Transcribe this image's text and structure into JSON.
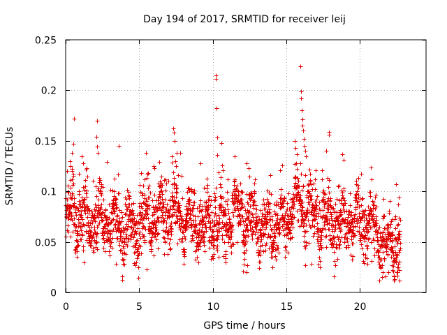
{
  "chart_data": {
    "type": "scatter",
    "title": "Day 194 of 2017, SRMTID for receiver leij",
    "xlabel": "GPS time / hours",
    "ylabel": "SRMTID / TECUs",
    "xlim": [
      0,
      24.5
    ],
    "ylim": [
      0,
      0.25
    ],
    "x_ticks": [
      0,
      5,
      10,
      15,
      20
    ],
    "x_tick_labels": [
      "0",
      "5",
      "10",
      "15",
      "20"
    ],
    "y_ticks": [
      0,
      0.05,
      0.1,
      0.15,
      0.2,
      0.25
    ],
    "y_tick_labels": [
      "0",
      "0.05",
      "0.1",
      "0.15",
      "0.2",
      "0.25"
    ],
    "grid": true,
    "marker": "+",
    "color": "#e00000",
    "generator": {
      "x_start": 0.0,
      "x_end": 22.75,
      "n_points": 2400,
      "seed": 194,
      "noise_sd": 0.014,
      "baseline": [
        [
          0.0,
          0.072
        ],
        [
          0.5,
          0.085
        ],
        [
          1.0,
          0.075
        ],
        [
          1.5,
          0.068
        ],
        [
          2.0,
          0.072
        ],
        [
          2.5,
          0.068
        ],
        [
          3.0,
          0.064
        ],
        [
          3.5,
          0.068
        ],
        [
          4.0,
          0.065
        ],
        [
          4.5,
          0.062
        ],
        [
          5.0,
          0.065
        ],
        [
          5.5,
          0.07
        ],
        [
          6.0,
          0.075
        ],
        [
          6.5,
          0.077
        ],
        [
          7.0,
          0.08
        ],
        [
          7.5,
          0.08
        ],
        [
          8.0,
          0.072
        ],
        [
          8.5,
          0.068
        ],
        [
          9.0,
          0.065
        ],
        [
          9.5,
          0.066
        ],
        [
          10.0,
          0.07
        ],
        [
          10.5,
          0.068
        ],
        [
          11.0,
          0.075
        ],
        [
          11.5,
          0.078
        ],
        [
          12.0,
          0.075
        ],
        [
          12.5,
          0.07
        ],
        [
          13.0,
          0.068
        ],
        [
          13.5,
          0.062
        ],
        [
          14.0,
          0.06
        ],
        [
          14.5,
          0.066
        ],
        [
          15.0,
          0.075
        ],
        [
          15.5,
          0.085
        ],
        [
          16.0,
          0.09
        ],
        [
          16.5,
          0.08
        ],
        [
          17.0,
          0.075
        ],
        [
          17.5,
          0.07
        ],
        [
          18.0,
          0.068
        ],
        [
          18.5,
          0.065
        ],
        [
          19.0,
          0.068
        ],
        [
          19.5,
          0.07
        ],
        [
          20.0,
          0.072
        ],
        [
          20.5,
          0.07
        ],
        [
          21.0,
          0.06
        ],
        [
          21.5,
          0.052
        ],
        [
          22.0,
          0.047
        ],
        [
          22.5,
          0.05
        ],
        [
          22.75,
          0.052
        ]
      ]
    },
    "highlighted_points": [
      {
        "x": 10.2,
        "y": 0.215
      },
      {
        "x": 10.22,
        "y": 0.211
      },
      {
        "x": 10.25,
        "y": 0.182
      },
      {
        "x": 10.28,
        "y": 0.153
      },
      {
        "x": 10.3,
        "y": 0.136
      },
      {
        "x": 15.95,
        "y": 0.224
      },
      {
        "x": 16.0,
        "y": 0.199
      },
      {
        "x": 16.02,
        "y": 0.192
      },
      {
        "x": 16.05,
        "y": 0.18
      },
      {
        "x": 16.08,
        "y": 0.171
      },
      {
        "x": 16.1,
        "y": 0.165
      },
      {
        "x": 16.15,
        "y": 0.16
      },
      {
        "x": 16.2,
        "y": 0.152
      },
      {
        "x": 16.25,
        "y": 0.145
      },
      {
        "x": 16.3,
        "y": 0.14
      },
      {
        "x": 16.35,
        "y": 0.135
      },
      {
        "x": 17.9,
        "y": 0.159
      },
      {
        "x": 17.92,
        "y": 0.156
      },
      {
        "x": 7.3,
        "y": 0.162
      },
      {
        "x": 7.35,
        "y": 0.158
      },
      {
        "x": 7.4,
        "y": 0.15
      },
      {
        "x": 7.2,
        "y": 0.135
      },
      {
        "x": 7.45,
        "y": 0.13
      },
      {
        "x": 7.5,
        "y": 0.125
      },
      {
        "x": 2.15,
        "y": 0.17
      },
      {
        "x": 2.1,
        "y": 0.154
      },
      {
        "x": 2.12,
        "y": 0.144
      },
      {
        "x": 2.18,
        "y": 0.138
      },
      {
        "x": 0.55,
        "y": 0.172
      },
      {
        "x": 0.5,
        "y": 0.147
      },
      {
        "x": 0.45,
        "y": 0.138
      },
      {
        "x": 0.3,
        "y": 0.13
      },
      {
        "x": 0.35,
        "y": 0.125
      },
      {
        "x": 3.6,
        "y": 0.145
      },
      {
        "x": 15.55,
        "y": 0.15
      },
      {
        "x": 15.6,
        "y": 0.143
      },
      {
        "x": 15.7,
        "y": 0.137
      },
      {
        "x": 12.3,
        "y": 0.128
      },
      {
        "x": 11.5,
        "y": 0.135
      },
      {
        "x": 1.1,
        "y": 0.135
      },
      {
        "x": 1.2,
        "y": 0.128
      },
      {
        "x": 6.0,
        "y": 0.125
      },
      {
        "x": 6.05,
        "y": 0.123
      },
      {
        "x": 22.55,
        "y": 0.02
      },
      {
        "x": 22.6,
        "y": 0.025
      },
      {
        "x": 22.7,
        "y": 0.022
      },
      {
        "x": 21.5,
        "y": 0.015
      },
      {
        "x": 21.55,
        "y": 0.02
      },
      {
        "x": 12.3,
        "y": 0.02
      },
      {
        "x": 12.35,
        "y": 0.027
      },
      {
        "x": 16.7,
        "y": 0.028
      },
      {
        "x": 22.2,
        "y": 0.022
      },
      {
        "x": 22.3,
        "y": 0.03
      },
      {
        "x": 5.5,
        "y": 0.023
      },
      {
        "x": 10.85,
        "y": 0.03
      }
    ]
  }
}
